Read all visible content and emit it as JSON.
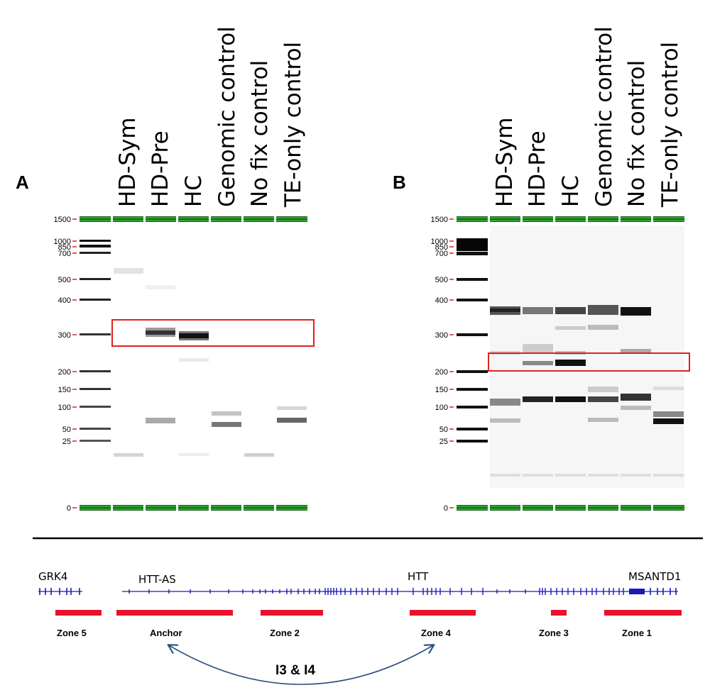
{
  "panels": [
    {
      "letter": "A",
      "lanes": [
        "HD-Sym",
        "HD-Pre",
        "HC",
        "Genomic control",
        "No fix control",
        "TE-only control"
      ],
      "ladder_marks": [
        "1500",
        "1000",
        "850",
        "700",
        "500",
        "400",
        "300",
        "200",
        "150",
        "100",
        "50",
        "25",
        "0"
      ]
    },
    {
      "letter": "B",
      "lanes": [
        "HD-Sym",
        "HD-Pre",
        "HC",
        "Genomic control",
        "No fix control",
        "TE-only control"
      ],
      "ladder_marks": [
        "1500",
        "1000",
        "850",
        "700",
        "500",
        "400",
        "300",
        "200",
        "150",
        "100",
        "50",
        "25",
        "0"
      ]
    }
  ],
  "genes": [
    "GRK4",
    "HTT-AS",
    "HTT",
    "MSANTD1"
  ],
  "zones": [
    "Zone 5",
    "Anchor",
    "Zone 2",
    "Zone 4",
    "Zone 3",
    "Zone 1"
  ],
  "interaction_label": "I3 & I4",
  "colors": {
    "marker_band": "#22a022",
    "highlight_box": "#e02020",
    "gene_track": "#1a1ab8",
    "zone_bar": "#e8122a",
    "arc": "#2a4f80"
  }
}
